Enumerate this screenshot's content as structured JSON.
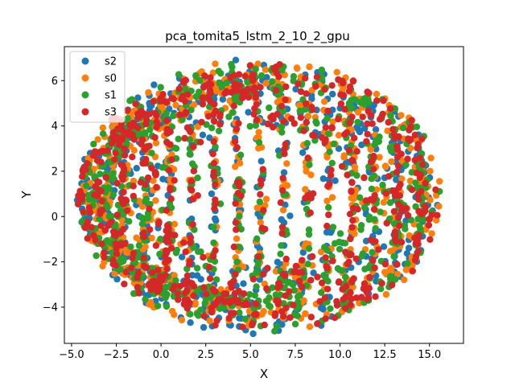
{
  "chart_data": {
    "type": "scatter",
    "title": "pca_tomita5_lstm_2_10_2_gpu",
    "xlabel": "X",
    "ylabel": "Y",
    "xlim": [
      -5.4,
      16.9
    ],
    "ylim": [
      -5.6,
      7.5
    ],
    "xticks": [
      -5.0,
      -2.5,
      0.0,
      2.5,
      5.0,
      7.5,
      10.0,
      12.5,
      15.0
    ],
    "xtick_labels": [
      "−5.0",
      "−2.5",
      "0.0",
      "2.5",
      "5.0",
      "7.5",
      "10.0",
      "12.5",
      "15.0"
    ],
    "yticks": [
      -4,
      -2,
      0,
      2,
      4,
      6
    ],
    "ytick_labels": [
      "−4",
      "−2",
      "0",
      "2",
      "4",
      "6"
    ],
    "grid": false,
    "legend_position": "top-left",
    "series": [
      {
        "name": "s2",
        "color": "#1f77b4"
      },
      {
        "name": "s0",
        "color": "#ff7f0e"
      },
      {
        "name": "s1",
        "color": "#2ca02c"
      },
      {
        "name": "s3",
        "color": "#d62728"
      }
    ],
    "point_cloud": {
      "description": "dense elliptical cloud of markers",
      "center": [
        5.5,
        0.9
      ],
      "x_range": [
        -4.6,
        15.8
      ],
      "y_range": [
        -4.9,
        7.3
      ],
      "points_per_series": 700
    }
  }
}
